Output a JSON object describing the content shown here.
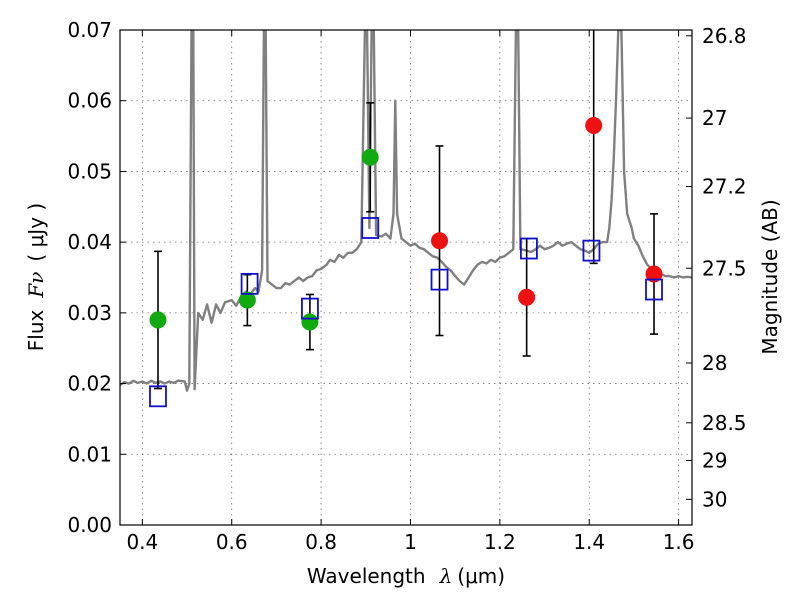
{
  "chart_data": {
    "type": "scatter",
    "xlabel_text": "Wavelength",
    "xlabel_symbol": "λ",
    "xlabel_unit": "(μm)",
    "ylabel_text": "Flux",
    "ylabel_symbol": "Fν",
    "ylabel_unit": "( μJy )",
    "y2label": "Magnitude (AB)",
    "xlim": [
      0.35,
      1.63
    ],
    "ylim": [
      0.0,
      0.07
    ],
    "grid": true,
    "x_ticks": [
      {
        "v": 0.4,
        "label": "0.4"
      },
      {
        "v": 0.6,
        "label": "0.6"
      },
      {
        "v": 0.8,
        "label": "0.8"
      },
      {
        "v": 1.0,
        "label": "1"
      },
      {
        "v": 1.2,
        "label": "1.2"
      },
      {
        "v": 1.4,
        "label": "1.4"
      },
      {
        "v": 1.6,
        "label": "1.6"
      }
    ],
    "y_ticks": [
      {
        "v": 0.0,
        "label": "0.00"
      },
      {
        "v": 0.01,
        "label": "0.01"
      },
      {
        "v": 0.02,
        "label": "0.02"
      },
      {
        "v": 0.03,
        "label": "0.03"
      },
      {
        "v": 0.04,
        "label": "0.04"
      },
      {
        "v": 0.05,
        "label": "0.05"
      },
      {
        "v": 0.06,
        "label": "0.06"
      },
      {
        "v": 0.07,
        "label": "0.07"
      }
    ],
    "y2_ticks": [
      {
        "mag": 26.8,
        "label": "26.8"
      },
      {
        "mag": 27.0,
        "label": "27"
      },
      {
        "mag": 27.2,
        "label": "27.2"
      },
      {
        "mag": 27.5,
        "label": "27.5"
      },
      {
        "mag": 28.0,
        "label": "28"
      },
      {
        "mag": 28.5,
        "label": "28.5"
      },
      {
        "mag": 29.0,
        "label": "29"
      },
      {
        "mag": 30.0,
        "label": "30"
      }
    ],
    "colors": {
      "green": "#11aa11",
      "red": "#ee1111",
      "model": "#808080",
      "box": "#1111cc"
    },
    "series": [
      {
        "marker": "circle",
        "color": "#11aa11",
        "points": [
          {
            "x": 0.435,
            "y": 0.029,
            "err_low": 0.0097,
            "err_high": 0.0097
          },
          {
            "x": 0.635,
            "y": 0.0318,
            "err_low": 0.0036,
            "err_high": 0.0036
          },
          {
            "x": 0.775,
            "y": 0.0287,
            "err_low": 0.0039,
            "err_high": 0.0039
          },
          {
            "x": 0.91,
            "y": 0.052,
            "err_low": 0.0077,
            "err_high": 0.0077
          }
        ]
      },
      {
        "marker": "circle",
        "color": "#ee1111",
        "points": [
          {
            "x": 1.065,
            "y": 0.0402,
            "err_low": 0.0134,
            "err_high": 0.0134
          },
          {
            "x": 1.26,
            "y": 0.0322,
            "err_low": 0.0083,
            "err_high": 0.0083
          },
          {
            "x": 1.41,
            "y": 0.0565,
            "err_low": 0.0195,
            "err_high": 0.0195
          },
          {
            "x": 1.545,
            "y": 0.0355,
            "err_low": 0.0085,
            "err_high": 0.0085
          }
        ]
      },
      {
        "marker": "open-square",
        "color": "#1111cc",
        "points": [
          {
            "x": 0.435,
            "y": 0.0182
          },
          {
            "x": 0.64,
            "y": 0.0341
          },
          {
            "x": 0.775,
            "y": 0.0306
          },
          {
            "x": 0.91,
            "y": 0.042
          },
          {
            "x": 1.065,
            "y": 0.0347
          },
          {
            "x": 1.265,
            "y": 0.0391
          },
          {
            "x": 1.405,
            "y": 0.0388
          },
          {
            "x": 1.545,
            "y": 0.0333
          }
        ]
      },
      {
        "marker": "line",
        "color": "#808080",
        "points": [
          [
            0.35,
            0.0198
          ],
          [
            0.36,
            0.0202
          ],
          [
            0.37,
            0.02
          ],
          [
            0.38,
            0.0204
          ],
          [
            0.39,
            0.0201
          ],
          [
            0.4,
            0.0203
          ],
          [
            0.41,
            0.02
          ],
          [
            0.42,
            0.0204
          ],
          [
            0.43,
            0.0201
          ],
          [
            0.44,
            0.0203
          ],
          [
            0.45,
            0.02
          ],
          [
            0.46,
            0.0203
          ],
          [
            0.47,
            0.0201
          ],
          [
            0.48,
            0.0204
          ],
          [
            0.495,
            0.0203
          ],
          [
            0.5,
            0.019
          ],
          [
            0.505,
            0.02
          ],
          [
            0.51,
            0.07
          ],
          [
            0.514,
            0.07
          ],
          [
            0.517,
            0.0192
          ],
          [
            0.525,
            0.03
          ],
          [
            0.535,
            0.029
          ],
          [
            0.545,
            0.0312
          ],
          [
            0.555,
            0.0286
          ],
          [
            0.565,
            0.0312
          ],
          [
            0.575,
            0.03
          ],
          [
            0.585,
            0.0315
          ],
          [
            0.6,
            0.0318
          ],
          [
            0.61,
            0.031
          ],
          [
            0.62,
            0.0322
          ],
          [
            0.632,
            0.033
          ],
          [
            0.64,
            0.0325
          ],
          [
            0.652,
            0.0335
          ],
          [
            0.66,
            0.033
          ],
          [
            0.668,
            0.036
          ],
          [
            0.672,
            0.07
          ],
          [
            0.676,
            0.07
          ],
          [
            0.68,
            0.0345
          ],
          [
            0.69,
            0.034
          ],
          [
            0.7,
            0.0335
          ],
          [
            0.71,
            0.0335
          ],
          [
            0.72,
            0.0342
          ],
          [
            0.73,
            0.034
          ],
          [
            0.74,
            0.0345
          ],
          [
            0.75,
            0.035
          ],
          [
            0.76,
            0.0345
          ],
          [
            0.77,
            0.035
          ],
          [
            0.78,
            0.0352
          ],
          [
            0.79,
            0.036
          ],
          [
            0.8,
            0.0362
          ],
          [
            0.812,
            0.0368
          ],
          [
            0.82,
            0.0375
          ],
          [
            0.83,
            0.0372
          ],
          [
            0.84,
            0.0382
          ],
          [
            0.85,
            0.0378
          ],
          [
            0.86,
            0.0385
          ],
          [
            0.87,
            0.0385
          ],
          [
            0.88,
            0.039
          ],
          [
            0.89,
            0.04
          ],
          [
            0.898,
            0.07
          ],
          [
            0.903,
            0.07
          ],
          [
            0.908,
            0.042
          ],
          [
            0.913,
            0.07
          ],
          [
            0.918,
            0.07
          ],
          [
            0.923,
            0.041
          ],
          [
            0.935,
            0.0408
          ],
          [
            0.945,
            0.0412
          ],
          [
            0.955,
            0.0405
          ],
          [
            0.962,
            0.044
          ],
          [
            0.966,
            0.06
          ],
          [
            0.97,
            0.044
          ],
          [
            0.98,
            0.0405
          ],
          [
            0.99,
            0.04
          ],
          [
            1.0,
            0.0395
          ],
          [
            1.01,
            0.0398
          ],
          [
            1.02,
            0.0392
          ],
          [
            1.03,
            0.039
          ],
          [
            1.04,
            0.0385
          ],
          [
            1.05,
            0.038
          ],
          [
            1.06,
            0.0378
          ],
          [
            1.07,
            0.0372
          ],
          [
            1.08,
            0.0365
          ],
          [
            1.09,
            0.036
          ],
          [
            1.1,
            0.0352
          ],
          [
            1.11,
            0.0345
          ],
          [
            1.12,
            0.034
          ],
          [
            1.13,
            0.035
          ],
          [
            1.14,
            0.036
          ],
          [
            1.15,
            0.0368
          ],
          [
            1.16,
            0.0372
          ],
          [
            1.17,
            0.037
          ],
          [
            1.18,
            0.0375
          ],
          [
            1.19,
            0.0372
          ],
          [
            1.2,
            0.0378
          ],
          [
            1.21,
            0.038
          ],
          [
            1.22,
            0.0385
          ],
          [
            1.23,
            0.039
          ],
          [
            1.236,
            0.07
          ],
          [
            1.241,
            0.07
          ],
          [
            1.246,
            0.039
          ],
          [
            1.26,
            0.0388
          ],
          [
            1.27,
            0.0386
          ],
          [
            1.28,
            0.039
          ],
          [
            1.29,
            0.0395
          ],
          [
            1.3,
            0.039
          ],
          [
            1.31,
            0.0392
          ],
          [
            1.32,
            0.0395
          ],
          [
            1.33,
            0.04
          ],
          [
            1.34,
            0.0395
          ],
          [
            1.35,
            0.0398
          ],
          [
            1.36,
            0.04
          ],
          [
            1.37,
            0.0395
          ],
          [
            1.38,
            0.039
          ],
          [
            1.39,
            0.0388
          ],
          [
            1.4,
            0.0385
          ],
          [
            1.41,
            0.039
          ],
          [
            1.42,
            0.0398
          ],
          [
            1.43,
            0.04
          ],
          [
            1.44,
            0.04
          ],
          [
            1.445,
            0.042
          ],
          [
            1.45,
            0.046
          ],
          [
            1.455,
            0.052
          ],
          [
            1.46,
            0.06
          ],
          [
            1.465,
            0.07
          ],
          [
            1.472,
            0.07
          ],
          [
            1.478,
            0.05
          ],
          [
            1.485,
            0.044
          ],
          [
            1.49,
            0.043
          ],
          [
            1.495,
            0.042
          ],
          [
            1.5,
            0.0405
          ],
          [
            1.51,
            0.0395
          ],
          [
            1.52,
            0.038
          ],
          [
            1.53,
            0.0368
          ],
          [
            1.54,
            0.0362
          ],
          [
            1.55,
            0.0358
          ],
          [
            1.56,
            0.0355
          ],
          [
            1.57,
            0.0352
          ],
          [
            1.58,
            0.0352
          ],
          [
            1.59,
            0.035
          ],
          [
            1.6,
            0.0352
          ],
          [
            1.61,
            0.035
          ],
          [
            1.62,
            0.0351
          ],
          [
            1.63,
            0.035
          ]
        ]
      }
    ]
  }
}
